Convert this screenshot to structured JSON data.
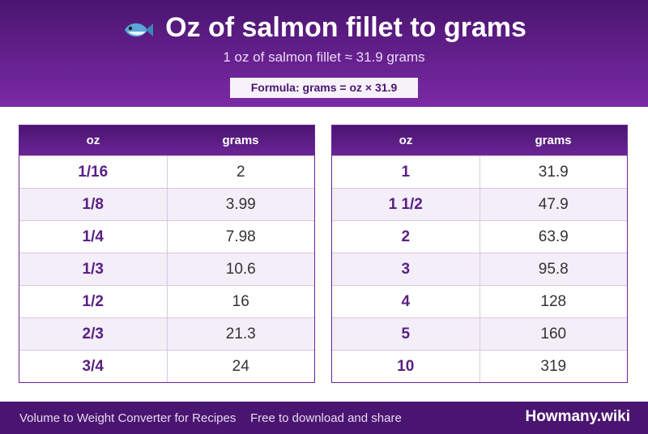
{
  "header": {
    "title": "Oz of salmon fillet to grams",
    "subtitle": "1 oz of salmon fillet ≈ 31.9 grams",
    "formula": "Formula: grams = oz × 31.9"
  },
  "tables": [
    {
      "columns": [
        "oz",
        "grams"
      ],
      "rows": [
        [
          "1/16",
          2
        ],
        [
          "1/8",
          3.99
        ],
        [
          "1/4",
          7.98
        ],
        [
          "1/3",
          10.6
        ],
        [
          "1/2",
          16
        ],
        [
          "2/3",
          21.3
        ],
        [
          "3/4",
          24
        ]
      ]
    },
    {
      "columns": [
        "oz",
        "grams"
      ],
      "rows": [
        [
          "1",
          31.9
        ],
        [
          "1 1/2",
          47.9
        ],
        [
          "2",
          63.9
        ],
        [
          "3",
          95.8
        ],
        [
          "4",
          128
        ],
        [
          "5",
          160
        ],
        [
          "10",
          319
        ]
      ]
    }
  ],
  "footer": {
    "left": "Volume to Weight Converter for Recipes",
    "tagline": "Free to download and share",
    "brand": "Howmany.wiki"
  }
}
